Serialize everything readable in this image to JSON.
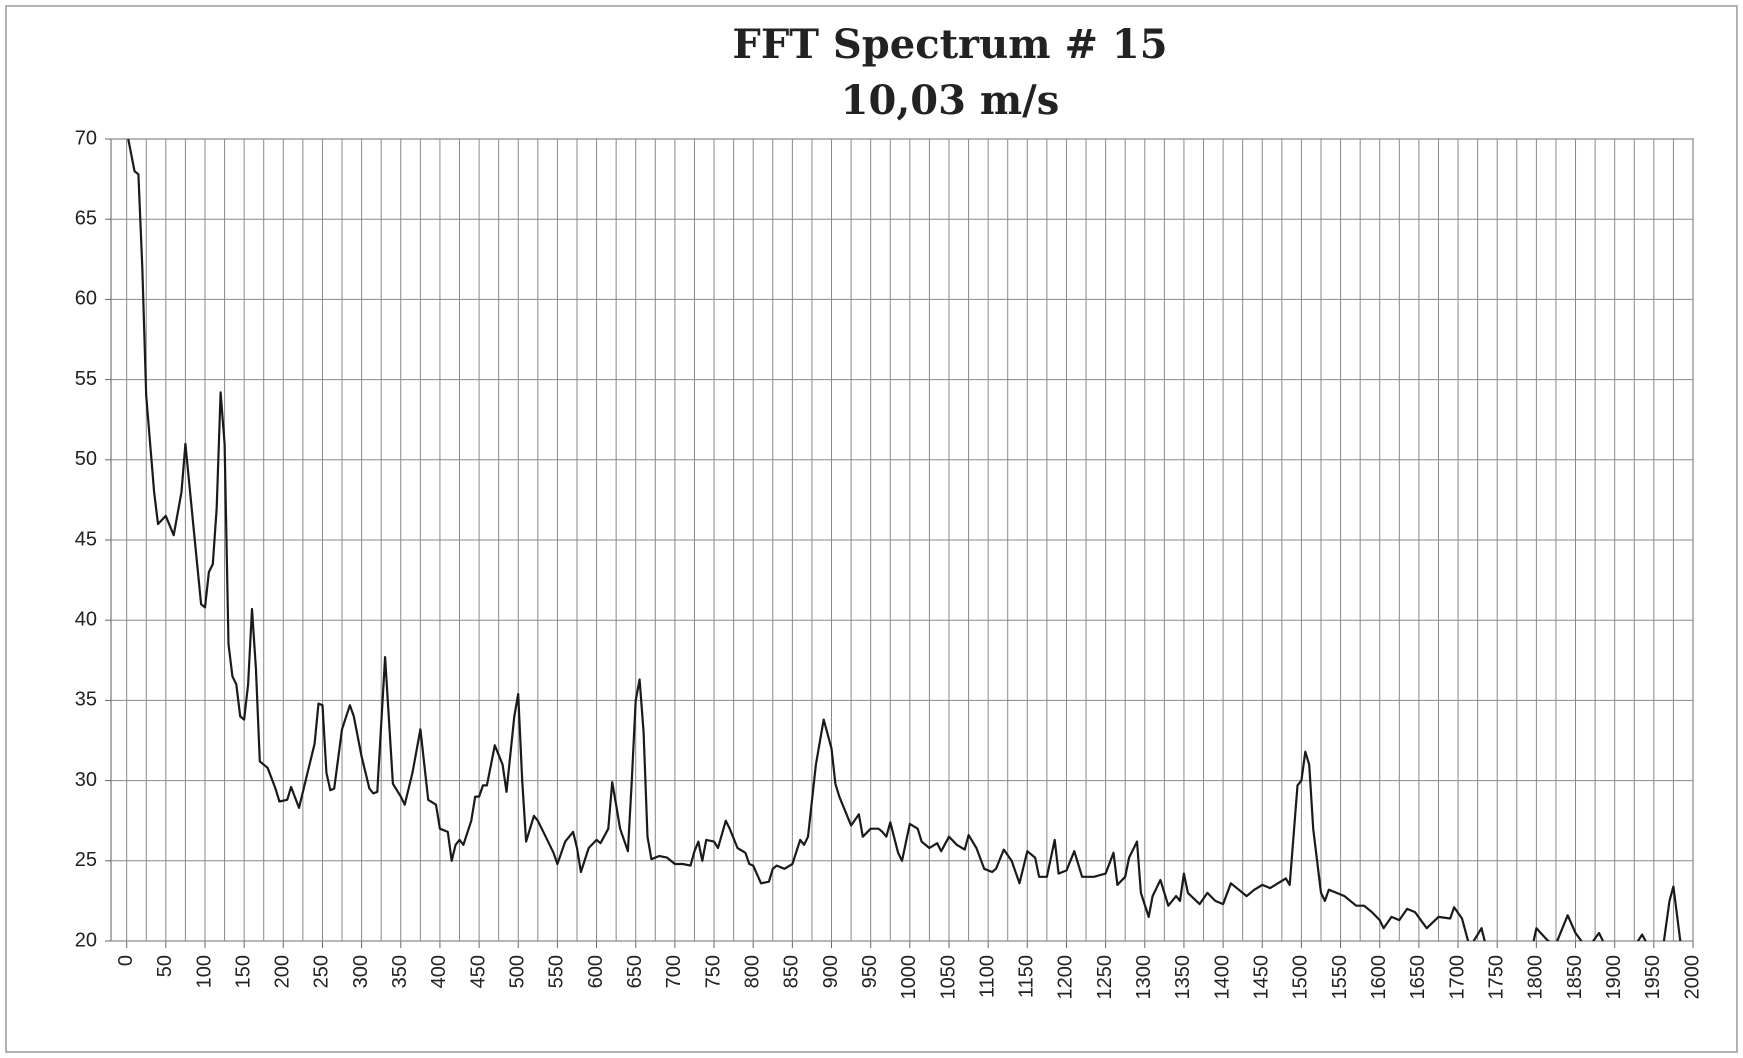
{
  "chart_data": {
    "type": "line",
    "title": "FFT Spectrum # 15",
    "subtitle": "10,03 m/s",
    "color": "#1a1a1a",
    "grid": true,
    "xlim": [
      -20,
      2000
    ],
    "ylim": [
      20,
      70
    ],
    "yticks": [
      20,
      25,
      30,
      35,
      40,
      45,
      50,
      55,
      60,
      65,
      70
    ],
    "xticks": [
      0,
      50,
      100,
      150,
      200,
      250,
      300,
      350,
      400,
      450,
      500,
      550,
      600,
      650,
      700,
      750,
      800,
      850,
      900,
      950,
      1000,
      1050,
      1100,
      1150,
      1200,
      1250,
      1300,
      1350,
      1400,
      1450,
      1500,
      1550,
      1600,
      1650,
      1700,
      1750,
      1800,
      1850,
      1900,
      1950,
      2000
    ],
    "xminor_ticks": [
      25,
      75,
      125,
      175,
      225,
      275,
      325,
      375,
      425,
      475,
      525,
      575,
      625,
      675,
      725,
      775,
      825,
      875,
      925,
      975,
      1025,
      1075,
      1125,
      1175,
      1225,
      1275,
      1325,
      1375,
      1425,
      1475,
      1525,
      1575,
      1625,
      1675,
      1725,
      1775,
      1825,
      1875,
      1925,
      1975
    ],
    "x": [
      0,
      10,
      15,
      20,
      25,
      35,
      40,
      50,
      60,
      70,
      75,
      85,
      95,
      100,
      105,
      110,
      115,
      120,
      125,
      130,
      135,
      140,
      145,
      150,
      155,
      160,
      165,
      170,
      180,
      190,
      195,
      205,
      210,
      220,
      230,
      240,
      245,
      250,
      255,
      260,
      265,
      275,
      285,
      290,
      300,
      310,
      315,
      320,
      330,
      340,
      350,
      355,
      365,
      375,
      385,
      395,
      400,
      410,
      415,
      420,
      425,
      430,
      440,
      445,
      450,
      455,
      460,
      470,
      480,
      485,
      495,
      500,
      505,
      510,
      520,
      525,
      535,
      545,
      550,
      560,
      570,
      575,
      580,
      590,
      600,
      605,
      615,
      620,
      625,
      630,
      640,
      645,
      650,
      655,
      660,
      665,
      670,
      680,
      690,
      700,
      710,
      720,
      725,
      730,
      735,
      740,
      750,
      755,
      765,
      770,
      780,
      790,
      795,
      800,
      810,
      820,
      825,
      830,
      840,
      850,
      860,
      865,
      870,
      880,
      890,
      900,
      905,
      910,
      920,
      925,
      935,
      940,
      950,
      960,
      965,
      970,
      975,
      985,
      990,
      1000,
      1010,
      1015,
      1025,
      1035,
      1040,
      1050,
      1060,
      1070,
      1075,
      1085,
      1095,
      1105,
      1110,
      1120,
      1130,
      1140,
      1150,
      1160,
      1165,
      1175,
      1185,
      1190,
      1200,
      1210,
      1220,
      1235,
      1250,
      1260,
      1265,
      1275,
      1280,
      1290,
      1295,
      1305,
      1310,
      1320,
      1330,
      1340,
      1345,
      1350,
      1355,
      1370,
      1380,
      1390,
      1400,
      1410,
      1420,
      1430,
      1440,
      1450,
      1460,
      1470,
      1480,
      1485,
      1495,
      1500,
      1505,
      1510,
      1515,
      1525,
      1530,
      1535,
      1545,
      1555,
      1570,
      1580,
      1590,
      1600,
      1605,
      1615,
      1625,
      1635,
      1645,
      1660,
      1675,
      1690,
      1695,
      1705,
      1715,
      1730,
      1735,
      1760,
      1790,
      1800,
      1815,
      1825,
      1840,
      1850,
      1865,
      1880,
      1890,
      1910,
      1935,
      1945,
      1960,
      1970,
      1975,
      1985
    ],
    "values": [
      70.5,
      68,
      67.8,
      62,
      54,
      48,
      46,
      46.5,
      45.3,
      48,
      51,
      46,
      41,
      40.8,
      43,
      43.5,
      47,
      54.2,
      51,
      38.5,
      36.5,
      36,
      34,
      33.8,
      36,
      40.7,
      37,
      31.2,
      30.8,
      29.5,
      28.7,
      28.8,
      29.6,
      28.3,
      30.3,
      32.3,
      34.8,
      34.7,
      30.5,
      29.4,
      29.5,
      33.2,
      34.7,
      34,
      31.5,
      29.5,
      29.2,
      29.3,
      37.7,
      29.8,
      29,
      28.5,
      30.5,
      33.2,
      28.8,
      28.5,
      27,
      26.8,
      25,
      26,
      26.3,
      26,
      27.5,
      29,
      29,
      29.7,
      29.7,
      32.2,
      31,
      29.3,
      34,
      35.4,
      30,
      26.2,
      27.8,
      27.5,
      26.5,
      25.5,
      24.8,
      26.2,
      26.8,
      25.8,
      24.3,
      25.8,
      26.3,
      26.1,
      27,
      29.9,
      28.5,
      27,
      25.6,
      30,
      35,
      36.3,
      33,
      26.5,
      25.1,
      25.3,
      25.2,
      24.8,
      24.8,
      24.7,
      25.6,
      26.2,
      25,
      26.3,
      26.2,
      25.8,
      27.5,
      27,
      25.8,
      25.5,
      24.8,
      24.7,
      23.6,
      23.7,
      24.5,
      24.7,
      24.5,
      24.8,
      26.3,
      26,
      26.5,
      31,
      33.8,
      32,
      29.8,
      29,
      27.8,
      27.2,
      27.9,
      26.5,
      27,
      27,
      26.8,
      26.5,
      27.4,
      25.5,
      25,
      27.3,
      27,
      26.2,
      25.8,
      26.1,
      25.6,
      26.5,
      26,
      25.7,
      26.6,
      25.8,
      24.5,
      24.3,
      24.5,
      25.7,
      25,
      23.6,
      25.6,
      25.2,
      24,
      24,
      26.3,
      24.2,
      24.4,
      25.6,
      24,
      24,
      24.2,
      25.5,
      23.5,
      24,
      25.2,
      26.2,
      23,
      21.5,
      22.8,
      23.8,
      22.2,
      22.8,
      22.5,
      24.2,
      23,
      22.3,
      23,
      22.5,
      22.3,
      23.6,
      23.2,
      22.8,
      23.2,
      23.5,
      23.3,
      23.6,
      23.9,
      23.5,
      29.7,
      30,
      31.8,
      31,
      27,
      23,
      22.5,
      23.2,
      23,
      22.8,
      22.2,
      22.2,
      21.8,
      21.3,
      20.8,
      21.5,
      21.3,
      22,
      21.8,
      20.8,
      21.5,
      21.4,
      22.1,
      21.4,
      19.6,
      20.8,
      19.8,
      18,
      18.5,
      20.8,
      20,
      19.8,
      21.6,
      20.5,
      19.5,
      20.5,
      19.5,
      18.5,
      20.4,
      19.5,
      19,
      22.5,
      23.4,
      19.5
    ]
  }
}
